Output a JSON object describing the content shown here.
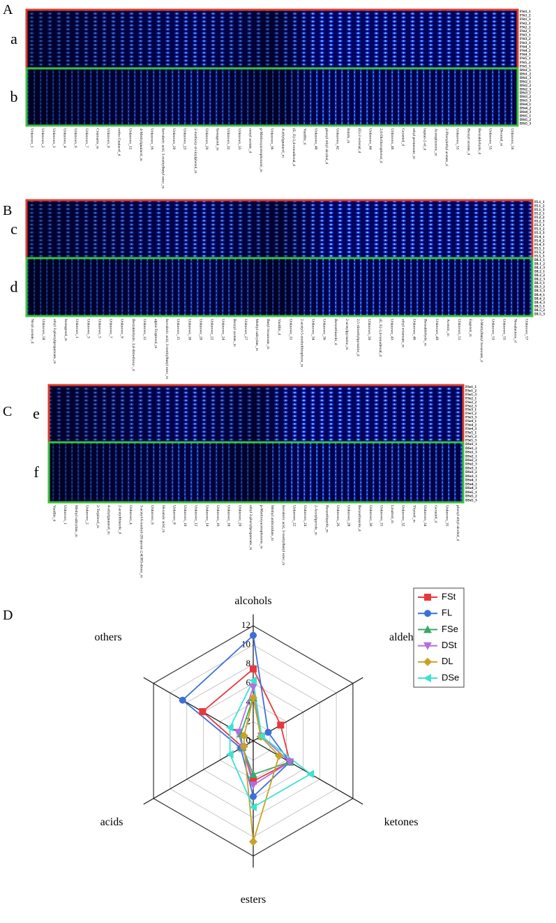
{
  "panels": [
    {
      "letter": "A",
      "blocks": [
        {
          "letter": "a",
          "samples": [
            "FSt1_1",
            "FSt1_2",
            "FSt1_3",
            "FSt2_1",
            "FSt2_2",
            "FSt2_3",
            "FSt3_1",
            "FSt3_2",
            "FSt3_3",
            "FSt4_1",
            "FSt4_2",
            "FSt4_3",
            "FSt5_1",
            "FSt5_2",
            "FSt5_3"
          ]
        },
        {
          "letter": "b",
          "samples": [
            "DSt1_1",
            "DSt1_2",
            "DSt1_3",
            "DSt2_1",
            "DSt2_2",
            "DSt2_3",
            "DSt3_1",
            "DSt3_2",
            "DSt3_3",
            "DSt4_1",
            "DSt4_2",
            "DSt4_3",
            "DSt5_1",
            "DSt5_2",
            "DSt5_3"
          ]
        }
      ],
      "columns": [
        "Unknown_1",
        "Unknown_2",
        "Unknown_3",
        "Unknown_4",
        "Unknown_6",
        "Unknown_7",
        "Coumarin_m",
        "Unknown_9",
        "ortho-Guaiacol_d",
        "Unknown_12",
        "4-Methylguaiacol_m",
        "Unknown_16",
        "Isovaleric acid, 3-methylbutyl ester_m",
        "Unknown_20",
        "Unknown_23",
        "2-methoxy-4-vinylphenol_m",
        "Unknown_29",
        "Isoeugenol_m",
        "Unknown_32",
        "Unknown_33",
        "nonyl acetate_d",
        "p-Methoxyacetophenone_m",
        "Unknown_36",
        "4-ethylguaiacol_m",
        "(E, E)-2,4-nonadienal_d",
        "Vanillin_d",
        "Unknown_40",
        "phenyl ethyl alcohol_d",
        "Unknown_42",
        "Indole_m",
        "(E)-2-octenal_d",
        "Unknown_44",
        "2,6-Dichlorophenol_d",
        "Unknown_46",
        "Geraniol_d",
        "ethyl pentanoate_m",
        "heptan-2-ol_d",
        "Acetophenone_m",
        "2-Phenylethyl acetate_d",
        "Unknown_53",
        "Benzyl acetate_d",
        "Benzaldehyde_d",
        "Unknown_55",
        "Decanal_m",
        "Unknown_56"
      ]
    },
    {
      "letter": "B",
      "blocks": [
        {
          "letter": "c",
          "samples": [
            "FL1_1",
            "FL1_2",
            "FL1_3",
            "FL2_1",
            "FL2_2",
            "FL2_3",
            "FL3_1",
            "FL3_2",
            "FL3_3",
            "FL4_1",
            "FL4_2",
            "FL4_3",
            "FL5_1",
            "FL5_2",
            "FL5_3"
          ]
        },
        {
          "letter": "d",
          "samples": [
            "DL1_1",
            "DL1_2",
            "DL1_3",
            "DL2_1",
            "DL2_2",
            "DL2_3",
            "DL3_1",
            "DL3_2",
            "DL3_3",
            "DL4_1",
            "DL4_2",
            "DL4_3",
            "DL5_1",
            "DL5_2",
            "DL5_3"
          ]
        }
      ],
      "columns": [
        "Neryl acetate_d",
        "Unknown_58",
        "ethyl 3-phenylpropanoate_m",
        "Isoeugenol_m",
        "Unknown_1",
        "Unknown_3",
        "Unknown_5",
        "Unknown_7",
        "Unknown_9",
        "Benzaldehyde, 3,4-dimethoxy-_d",
        "Unknown_12",
        "alpha-Terpineol_m",
        "Isovaleric acid, 3-methylbutyl ester_m",
        "Unknown_15",
        "Unknown_18",
        "Unknown_20",
        "Unknown_22",
        "Unknown_24",
        "Benzyl acetate_m",
        "Unknown_27",
        "Methyl salicylate_m",
        "Butyl hexanoate_m",
        "Vanillin_d",
        "Unknown_31",
        "2-acetyl-5-methylthiophene_m",
        "Unknown_34",
        "Unknown_36",
        "Benzothiazole_d",
        "2-acetylpyrazine_m",
        "2,5-dimethylpyrazine_d",
        "Unknown_39",
        "(E, E)-2,4-nonadienal_d",
        "Unknown_43",
        "ethyl octanoate_m",
        "Unknown_46",
        "Benzaldehyde_m",
        "Unknown_49",
        "Acetoin_m",
        "Unknown_51",
        "Eugenol_m",
        "3-Methylbutyl hexanoate_d",
        "Unknown_53",
        "Unknown_55",
        "Nonalactone_d",
        "Unknown_57"
      ]
    },
    {
      "letter": "C",
      "blocks": [
        {
          "letter": "e",
          "samples": [
            "FSe1_1",
            "FSe1_2",
            "FSe1_3",
            "FSe2_1",
            "FSe2_2",
            "FSe2_3",
            "FSe3_1",
            "FSe3_2",
            "FSe3_3",
            "FSe4_1",
            "FSe4_2",
            "FSe4_3",
            "FSe5_1",
            "FSe5_2",
            "FSe5_3"
          ]
        },
        {
          "letter": "f",
          "samples": [
            "DSe1_1",
            "DSe1_2",
            "DSe1_3",
            "DSe2_1",
            "DSe2_2",
            "DSe2_3",
            "DSe3_1",
            "DSe3_2",
            "DSe3_3",
            "DSe4_1",
            "DSe4_2",
            "DSe4_3",
            "DSe5_1",
            "DSe5_2",
            "DSe5_3"
          ]
        }
      ],
      "columns": [
        "Vanillin_d",
        "Unknown_1",
        "Methyl salicylate_m",
        "Unknown_2",
        "2-Terpineol_m",
        "4-ethylguaiacol_m",
        "2-acetylthiazole_d",
        "Unknown_4",
        "3-acetyl-6-methyl-2H-pyran-2,4(3H)-dione_m",
        "Unknown_6",
        "Hexanoic acid_m",
        "Unknown_8",
        "Unknown_10",
        "Unknown_12",
        "Unknown_14",
        "Unknown_16",
        "Unknown_18",
        "Unknown_20",
        "ethyl 3-phenylpropanoate_m",
        "p-Methoxyacetophenone_m",
        "Methyl anthranilate_m",
        "Isovaleric acid, 3-methylbutyl ester_m",
        "Unknown_22",
        "Unknown_24",
        "2-Acetylpyrrole_m",
        "Benzothiazole_m",
        "Unknown_26",
        "Unknown_28",
        "Benzothiazole_d",
        "Unknown_30",
        "Unknown_31",
        "Linalool_m",
        "Unknown_32",
        "Thymol_m",
        "Unknown_34",
        "Geraniol_d",
        "Unknown_35",
        "phenyl ethyl alcohol_d"
      ]
    }
  ],
  "chart_letter": "D",
  "chart_data": {
    "type": "radar",
    "categories": [
      "alcohols",
      "aldehydes",
      "ketones",
      "esters",
      "acids",
      "others"
    ],
    "ylim": [
      0,
      12
    ],
    "yticks": [
      0,
      2,
      4,
      6,
      8,
      10,
      12
    ],
    "grid": true,
    "legend": "upper right",
    "series": [
      {
        "name": "FSt",
        "color": "#e8383d",
        "marker": "square",
        "values": [
          7.5,
          3.3,
          4.4,
          4.2,
          1.3,
          6.1
        ]
      },
      {
        "name": "FL",
        "color": "#3d6fd8",
        "marker": "circle",
        "values": [
          11,
          1.8,
          4.4,
          5.8,
          1.5,
          8.5
        ]
      },
      {
        "name": "FSe",
        "color": "#3aa86b",
        "marker": "triangle-up",
        "values": [
          4.5,
          1,
          4.4,
          3.5,
          1.3,
          1.5
        ]
      },
      {
        "name": "DSt",
        "color": "#b070e0",
        "marker": "triangle-down",
        "values": [
          5.6,
          1,
          4.4,
          4.6,
          1.3,
          1.8
        ]
      },
      {
        "name": "DL",
        "color": "#c9a227",
        "marker": "diamond",
        "values": [
          4.5,
          0.9,
          3.1,
          10.5,
          1.1,
          1.1
        ]
      },
      {
        "name": "DSe",
        "color": "#40e0d0",
        "marker": "triangle-left",
        "values": [
          6.3,
          1,
          6.9,
          6.9,
          2.8,
          2.8
        ]
      }
    ]
  }
}
